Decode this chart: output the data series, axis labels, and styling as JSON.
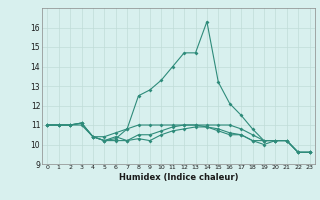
{
  "xlabel": "Humidex (Indice chaleur)",
  "x": [
    0,
    1,
    2,
    3,
    4,
    5,
    6,
    7,
    8,
    9,
    10,
    11,
    12,
    13,
    14,
    15,
    16,
    17,
    18,
    19,
    20,
    21,
    22,
    23
  ],
  "line1": [
    11.0,
    11.0,
    11.0,
    11.1,
    10.4,
    10.2,
    10.4,
    10.2,
    10.3,
    10.2,
    10.5,
    10.7,
    10.8,
    10.9,
    10.9,
    10.7,
    10.5,
    10.5,
    10.2,
    10.2,
    10.2,
    10.2,
    9.6,
    9.6
  ],
  "line2": [
    11.0,
    11.0,
    11.0,
    11.1,
    10.4,
    10.4,
    10.6,
    10.8,
    12.5,
    12.8,
    13.3,
    14.0,
    14.7,
    14.7,
    16.3,
    13.2,
    12.1,
    11.5,
    10.8,
    10.2,
    10.2,
    10.2,
    9.6,
    9.6
  ],
  "line3": [
    11.0,
    11.0,
    11.0,
    11.1,
    10.4,
    10.2,
    10.3,
    10.8,
    11.0,
    11.0,
    11.0,
    11.0,
    11.0,
    11.0,
    11.0,
    11.0,
    11.0,
    10.8,
    10.5,
    10.2,
    10.2,
    10.2,
    9.6,
    9.6
  ],
  "line4": [
    11.0,
    11.0,
    11.0,
    11.0,
    10.4,
    10.2,
    10.2,
    10.2,
    10.5,
    10.5,
    10.7,
    10.9,
    11.0,
    11.0,
    10.9,
    10.8,
    10.6,
    10.5,
    10.2,
    10.0,
    10.2,
    10.2,
    9.6,
    9.6
  ],
  "line_color": "#2e8b7a",
  "bg_color": "#d8f0ee",
  "grid_color": "#c0dcd8",
  "ylim": [
    9,
    17
  ],
  "xlim": [
    -0.5,
    23.5
  ],
  "yticks": [
    9,
    10,
    11,
    12,
    13,
    14,
    15,
    16
  ],
  "xticks": [
    0,
    1,
    2,
    3,
    4,
    5,
    6,
    7,
    8,
    9,
    10,
    11,
    12,
    13,
    14,
    15,
    16,
    17,
    18,
    19,
    20,
    21,
    22,
    23
  ]
}
